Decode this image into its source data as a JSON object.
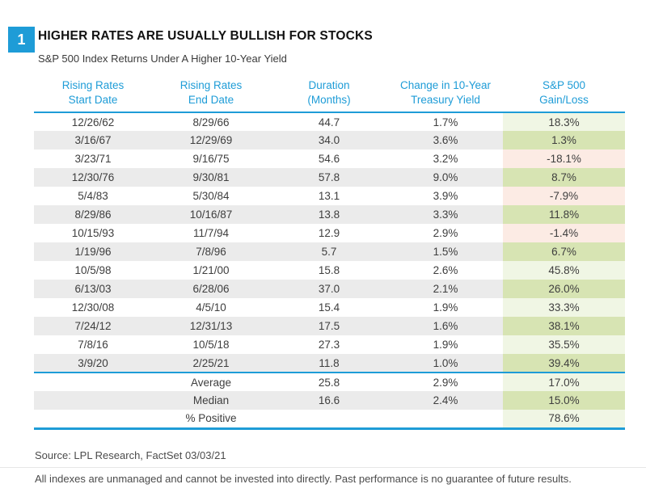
{
  "figure_number": "1",
  "title": "HIGHER RATES ARE USUALLY BULLISH FOR STOCKS",
  "subtitle": "S&P 500 Index Returns Under A Higher 10-Year Yield",
  "palette": {
    "accent_blue": "#1e9cd7",
    "row_stripe": "#ebebeb",
    "positive_on_white": "#f0f6e4",
    "positive_on_stripe": "#d7e4b3",
    "negative_on_white": "#fcebe4",
    "negative_on_stripe": "#f6d9cd",
    "text_dark": "#3e3e3e"
  },
  "chart_data": {
    "type": "table",
    "title": "HIGHER RATES ARE USUALLY BULLISH FOR STOCKS",
    "subtitle": "S&P 500 Index Returns Under A Higher 10-Year Yield",
    "columns": [
      {
        "line1": "Rising Rates",
        "line2": "Start Date"
      },
      {
        "line1": "Rising Rates",
        "line2": "End Date"
      },
      {
        "line1": "Duration",
        "line2": "(Months)"
      },
      {
        "line1": "Change in 10-Year",
        "line2": "Treasury Yield"
      },
      {
        "line1": "S&P 500",
        "line2": "Gain/Loss"
      }
    ],
    "rows": [
      [
        "12/26/62",
        "8/29/66",
        "44.7",
        "1.7%",
        "18.3%"
      ],
      [
        "3/16/67",
        "12/29/69",
        "34.0",
        "3.6%",
        "1.3%"
      ],
      [
        "3/23/71",
        "9/16/75",
        "54.6",
        "3.2%",
        "-18.1%"
      ],
      [
        "12/30/76",
        "9/30/81",
        "57.8",
        "9.0%",
        "8.7%"
      ],
      [
        "5/4/83",
        "5/30/84",
        "13.1",
        "3.9%",
        "-7.9%"
      ],
      [
        "8/29/86",
        "10/16/87",
        "13.8",
        "3.3%",
        "11.8%"
      ],
      [
        "10/15/93",
        "11/7/94",
        "12.9",
        "2.9%",
        "-1.4%"
      ],
      [
        "1/19/96",
        "7/8/96",
        "5.7",
        "1.5%",
        "6.7%"
      ],
      [
        "10/5/98",
        "1/21/00",
        "15.8",
        "2.6%",
        "45.8%"
      ],
      [
        "6/13/03",
        "6/28/06",
        "37.0",
        "2.1%",
        "26.0%"
      ],
      [
        "12/30/08",
        "4/5/10",
        "15.4",
        "1.9%",
        "33.3%"
      ],
      [
        "7/24/12",
        "12/31/13",
        "17.5",
        "1.6%",
        "38.1%"
      ],
      [
        "7/8/16",
        "10/5/18",
        "27.3",
        "1.9%",
        "35.5%"
      ],
      [
        "3/9/20",
        "2/25/21",
        "11.8",
        "1.0%",
        "39.4%"
      ]
    ],
    "summary_rows": [
      [
        "",
        "Average",
        "25.8",
        "2.9%",
        "17.0%"
      ],
      [
        "",
        "Median",
        "16.6",
        "2.4%",
        "15.0%"
      ],
      [
        "",
        "% Positive",
        "",
        "",
        "78.6%"
      ]
    ]
  },
  "footer": {
    "source": "Source: LPL Research, FactSet 03/03/21",
    "disclaimer": "All indexes are unmanaged and cannot be invested into directly. Past performance is no guarantee of future results."
  }
}
